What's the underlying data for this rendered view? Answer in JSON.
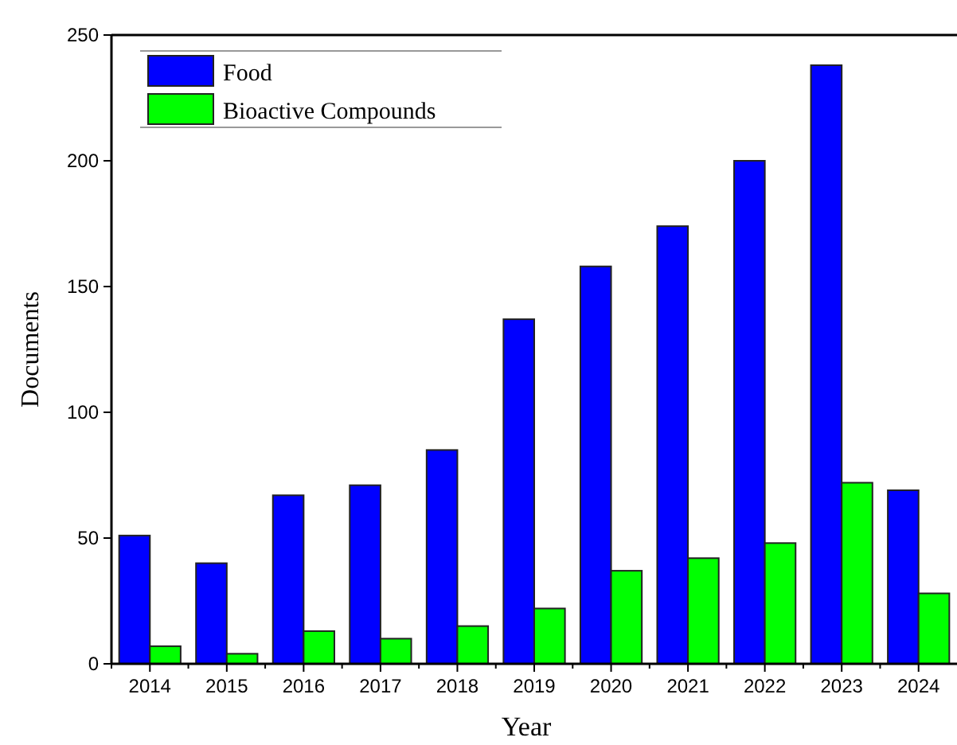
{
  "chart_data": {
    "type": "bar",
    "xlabel": "Year",
    "ylabel": "Documents",
    "categories": [
      "2014",
      "2015",
      "2016",
      "2017",
      "2018",
      "2019",
      "2020",
      "2021",
      "2022",
      "2023",
      "2024"
    ],
    "series": [
      {
        "name": "Food",
        "color": "#0000ff",
        "values": [
          51,
          40,
          67,
          71,
          85,
          137,
          158,
          174,
          200,
          238,
          69
        ]
      },
      {
        "name": "Bioactive Compounds",
        "color": "#00ff00",
        "values": [
          7,
          4,
          13,
          10,
          15,
          22,
          37,
          42,
          48,
          72,
          28
        ]
      }
    ],
    "ylim": [
      0,
      250
    ],
    "yticks": [
      0,
      50,
      100,
      150,
      200,
      250
    ],
    "grid": false,
    "legend": "top left"
  }
}
